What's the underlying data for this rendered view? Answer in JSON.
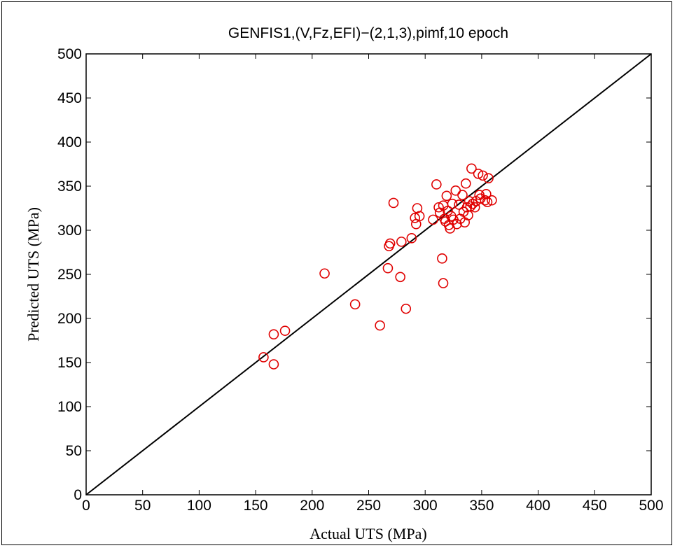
{
  "chart_data": {
    "type": "scatter",
    "title": "GENFIS1,(V,Fz,EFI)−(2,1,3),pimf,10 epoch",
    "xlabel": "Actual UTS (MPa)",
    "ylabel": "Predicted UTS (MPa)",
    "xlim": [
      0,
      500
    ],
    "ylim": [
      0,
      500
    ],
    "x_ticks": [
      "0",
      "50",
      "100",
      "150",
      "200",
      "250",
      "300",
      "350",
      "400",
      "450",
      "500"
    ],
    "y_ticks": [
      "0",
      "50",
      "100",
      "150",
      "200",
      "250",
      "300",
      "350",
      "400",
      "450",
      "500"
    ],
    "grid": false,
    "reference_line": {
      "x": [
        0,
        500
      ],
      "y": [
        0,
        500
      ],
      "color": "#000000"
    },
    "marker_color": "#e00000",
    "line_color": "#000000",
    "points": [
      {
        "x": 157,
        "y": 156
      },
      {
        "x": 166,
        "y": 182
      },
      {
        "x": 166,
        "y": 148
      },
      {
        "x": 176,
        "y": 186
      },
      {
        "x": 211,
        "y": 251
      },
      {
        "x": 238,
        "y": 216
      },
      {
        "x": 260,
        "y": 192
      },
      {
        "x": 267,
        "y": 257
      },
      {
        "x": 268,
        "y": 282
      },
      {
        "x": 269,
        "y": 285
      },
      {
        "x": 272,
        "y": 331
      },
      {
        "x": 278,
        "y": 247
      },
      {
        "x": 279,
        "y": 287
      },
      {
        "x": 283,
        "y": 211
      },
      {
        "x": 288,
        "y": 291
      },
      {
        "x": 291,
        "y": 314
      },
      {
        "x": 292,
        "y": 307
      },
      {
        "x": 293,
        "y": 325
      },
      {
        "x": 295,
        "y": 316
      },
      {
        "x": 307,
        "y": 312
      },
      {
        "x": 310,
        "y": 352
      },
      {
        "x": 312,
        "y": 326
      },
      {
        "x": 313,
        "y": 320
      },
      {
        "x": 315,
        "y": 268
      },
      {
        "x": 316,
        "y": 240
      },
      {
        "x": 316,
        "y": 328
      },
      {
        "x": 317,
        "y": 313
      },
      {
        "x": 318,
        "y": 310
      },
      {
        "x": 319,
        "y": 339
      },
      {
        "x": 320,
        "y": 322
      },
      {
        "x": 321,
        "y": 306
      },
      {
        "x": 322,
        "y": 302
      },
      {
        "x": 323,
        "y": 316
      },
      {
        "x": 324,
        "y": 330
      },
      {
        "x": 325,
        "y": 312
      },
      {
        "x": 327,
        "y": 345
      },
      {
        "x": 328,
        "y": 307
      },
      {
        "x": 330,
        "y": 329
      },
      {
        "x": 331,
        "y": 313
      },
      {
        "x": 333,
        "y": 340
      },
      {
        "x": 334,
        "y": 321
      },
      {
        "x": 335,
        "y": 309
      },
      {
        "x": 336,
        "y": 353
      },
      {
        "x": 337,
        "y": 326
      },
      {
        "x": 338,
        "y": 317
      },
      {
        "x": 339,
        "y": 333
      },
      {
        "x": 340,
        "y": 327
      },
      {
        "x": 341,
        "y": 370
      },
      {
        "x": 342,
        "y": 330
      },
      {
        "x": 344,
        "y": 326
      },
      {
        "x": 345,
        "y": 333
      },
      {
        "x": 347,
        "y": 364
      },
      {
        "x": 348,
        "y": 340
      },
      {
        "x": 349,
        "y": 336
      },
      {
        "x": 351,
        "y": 362
      },
      {
        "x": 353,
        "y": 334
      },
      {
        "x": 354,
        "y": 341
      },
      {
        "x": 355,
        "y": 332
      },
      {
        "x": 356,
        "y": 359
      },
      {
        "x": 359,
        "y": 334
      }
    ]
  }
}
